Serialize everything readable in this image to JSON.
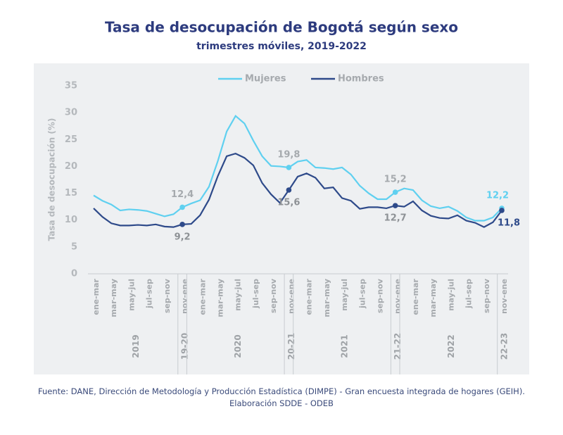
{
  "chart_data": {
    "type": "line",
    "title": "Tasa de desocupación de Bogotá según sexo",
    "subtitle": "trimestres móviles, 2019-2022",
    "y_label": "Tasa de desocupación (%)",
    "source": "Fuente: DANE, Dirección de Metodología y Producción Estadística (DIMPE) - Gran encuesta integrada de hogares (GEIH). Elaboración SDDE - ODEB",
    "categories": [
      "ene-mar",
      null,
      "mar-may",
      null,
      "may-jul",
      null,
      "jul-sep",
      null,
      "sep-nov",
      null,
      "nov-ene",
      null,
      "ene-mar",
      null,
      "mar-may",
      null,
      "may-jul",
      null,
      "jul-sep",
      null,
      "sep-nov",
      null,
      "nov-ene",
      null,
      "ene-mar",
      null,
      "mar-may",
      null,
      "may-jul",
      null,
      "jul-sep",
      null,
      "sep-nov",
      null,
      "nov-ene",
      null,
      "ene-mar",
      null,
      "mar-may",
      null,
      "may-jul",
      null,
      "jul-sep",
      null,
      "sep-nov",
      null,
      "nov-ene"
    ],
    "groups": [
      {
        "label": "2019",
        "size": 10
      },
      {
        "label": "19-20",
        "size": 1
      },
      {
        "label": "2020",
        "size": 11
      },
      {
        "label": "20-21",
        "size": 1
      },
      {
        "label": "2021",
        "size": 11
      },
      {
        "label": "21-22",
        "size": 1
      },
      {
        "label": "2022",
        "size": 11
      },
      {
        "label": "22-23",
        "size": 1
      }
    ],
    "series": [
      {
        "name": "Mujeres",
        "color": "#5fd0f0",
        "values": [
          14.6,
          13.6,
          12.9,
          11.8,
          12.0,
          11.9,
          11.7,
          11.2,
          10.7,
          11.1,
          12.4,
          13.1,
          13.7,
          16.2,
          21.0,
          26.5,
          29.4,
          28.0,
          24.8,
          21.9,
          20.1,
          20.0,
          19.8,
          20.9,
          21.2,
          19.8,
          19.7,
          19.5,
          19.8,
          18.5,
          16.4,
          15.0,
          13.9,
          13.9,
          15.2,
          15.9,
          15.6,
          13.7,
          12.6,
          12.2,
          12.5,
          11.7,
          10.5,
          9.9,
          9.9,
          10.5,
          12.2
        ],
        "value_labels": [
          null,
          null,
          null,
          null,
          null,
          null,
          null,
          null,
          null,
          null,
          "12,4",
          null,
          null,
          null,
          null,
          null,
          null,
          null,
          null,
          null,
          null,
          null,
          "19,8",
          null,
          null,
          null,
          null,
          null,
          null,
          null,
          null,
          null,
          null,
          null,
          "15,2",
          null,
          null,
          null,
          null,
          null,
          null,
          null,
          null,
          null,
          null,
          null,
          "12,2"
        ]
      },
      {
        "name": "Hombres",
        "color": "#2e4a8a",
        "values": [
          12.2,
          10.6,
          9.4,
          9.0,
          9.0,
          9.1,
          9.0,
          9.2,
          8.8,
          8.7,
          9.2,
          9.3,
          10.9,
          13.8,
          18.2,
          21.9,
          22.4,
          21.6,
          20.2,
          16.9,
          14.8,
          13.2,
          15.6,
          18.1,
          18.7,
          17.9,
          15.9,
          16.1,
          14.1,
          13.6,
          12.1,
          12.4,
          12.4,
          12.2,
          12.7,
          12.5,
          13.5,
          11.8,
          10.8,
          10.4,
          10.3,
          10.9,
          9.9,
          9.5,
          8.7,
          9.6,
          11.8
        ],
        "value_labels": [
          null,
          null,
          null,
          null,
          null,
          null,
          null,
          null,
          null,
          null,
          "9,2",
          null,
          null,
          null,
          null,
          null,
          null,
          null,
          null,
          null,
          null,
          null,
          "15,6",
          null,
          null,
          null,
          null,
          null,
          null,
          null,
          null,
          null,
          null,
          null,
          "12,7",
          null,
          null,
          null,
          null,
          null,
          null,
          null,
          null,
          null,
          null,
          null,
          "11,8"
        ]
      }
    ],
    "ylim": [
      0,
      35
    ],
    "yticks": [
      0,
      5,
      10,
      15,
      20,
      25,
      30,
      35
    ],
    "grid": false,
    "legend": "top"
  }
}
